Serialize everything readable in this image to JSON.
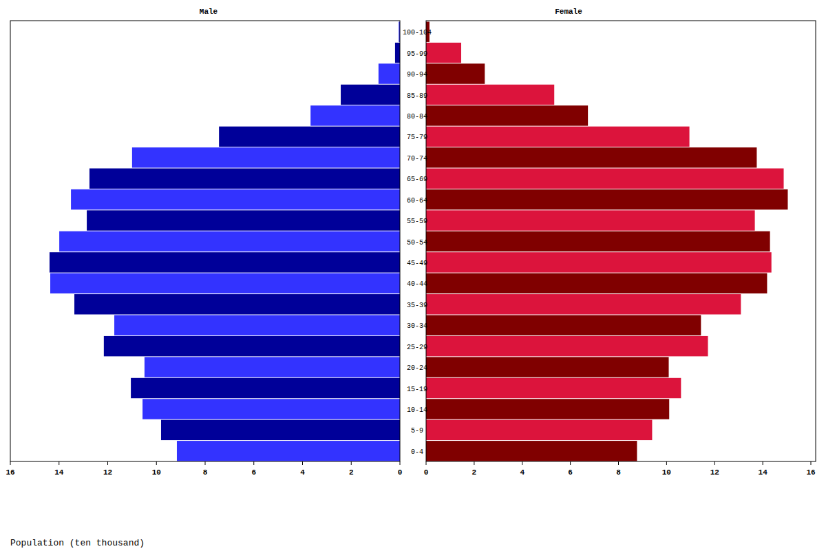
{
  "chart_data": {
    "type": "bar",
    "orientation": "horizontal",
    "xlabel": "Population (ten thousand)",
    "categories": [
      "0-4",
      "5-9",
      "10-14",
      "15-19",
      "20-24",
      "25-29",
      "30-34",
      "35-39",
      "40-44",
      "45-49",
      "50-54",
      "55-59",
      "60-64",
      "65-69",
      "70-74",
      "75-79",
      "80-84",
      "85-89",
      "90-94",
      "95-99",
      "100-104"
    ],
    "series": [
      {
        "name": "Male",
        "colors": [
          "#3333ff",
          "#000099"
        ],
        "values": [
          9.16,
          9.81,
          10.57,
          11.05,
          10.49,
          12.16,
          11.73,
          13.37,
          14.36,
          14.39,
          13.99,
          12.86,
          13.51,
          12.75,
          11.0,
          7.43,
          3.67,
          2.43,
          0.88,
          0.2,
          0.05
        ],
        "xlim": [
          0,
          16
        ],
        "xticks": [
          0,
          2,
          4,
          6,
          8,
          10,
          12,
          14,
          16
        ]
      },
      {
        "name": "Female",
        "colors": [
          "#800000",
          "#dc143c"
        ],
        "values": [
          8.77,
          9.4,
          10.11,
          10.6,
          10.09,
          11.72,
          11.43,
          13.09,
          14.18,
          14.36,
          14.3,
          13.67,
          15.04,
          14.87,
          13.75,
          10.95,
          6.73,
          5.33,
          2.44,
          1.46,
          0.14
        ],
        "xlim": [
          0,
          16.2
        ],
        "xticks": [
          0,
          2,
          4,
          6,
          8,
          10,
          12,
          14,
          16
        ]
      }
    ]
  }
}
